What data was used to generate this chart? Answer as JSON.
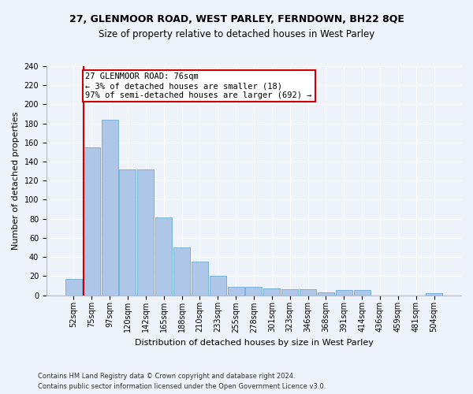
{
  "title1": "27, GLENMOOR ROAD, WEST PARLEY, FERNDOWN, BH22 8QE",
  "title2": "Size of property relative to detached houses in West Parley",
  "xlabel": "Distribution of detached houses by size in West Parley",
  "ylabel": "Number of detached properties",
  "bar_labels": [
    "52sqm",
    "75sqm",
    "97sqm",
    "120sqm",
    "142sqm",
    "165sqm",
    "188sqm",
    "210sqm",
    "233sqm",
    "255sqm",
    "278sqm",
    "301sqm",
    "323sqm",
    "346sqm",
    "368sqm",
    "391sqm",
    "414sqm",
    "436sqm",
    "459sqm",
    "481sqm",
    "504sqm"
  ],
  "bar_values": [
    17,
    155,
    184,
    132,
    132,
    81,
    50,
    35,
    20,
    9,
    9,
    7,
    6,
    6,
    3,
    5,
    5,
    0,
    0,
    0,
    2
  ],
  "bar_color": "#aec6e8",
  "bar_edge_color": "#6aaad4",
  "vline_x_idx": 1,
  "vline_color": "#cc0000",
  "annotation_text": "27 GLENMOOR ROAD: 76sqm\n← 3% of detached houses are smaller (18)\n97% of semi-detached houses are larger (692) →",
  "annotation_box_color": "#ffffff",
  "annotation_box_edge": "#cc0000",
  "ylim": [
    0,
    240
  ],
  "yticks": [
    0,
    20,
    40,
    60,
    80,
    100,
    120,
    140,
    160,
    180,
    200,
    220,
    240
  ],
  "footer1": "Contains HM Land Registry data © Crown copyright and database right 2024.",
  "footer2": "Contains public sector information licensed under the Open Government Licence v3.0.",
  "bg_color": "#eef2f9",
  "grid_color": "#ffffff",
  "title1_fontsize": 9,
  "title2_fontsize": 8.5,
  "xlabel_fontsize": 8,
  "ylabel_fontsize": 8,
  "tick_fontsize": 7,
  "footer_fontsize": 6,
  "annot_fontsize": 7.5
}
